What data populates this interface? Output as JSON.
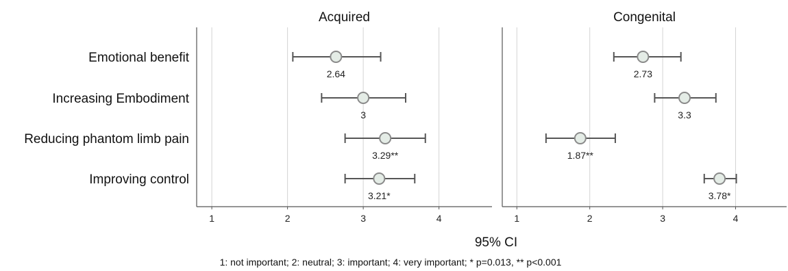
{
  "chart_data": {
    "type": "scatter",
    "xlabel": "95% CI",
    "footnote": "1: not important; 2: neutral; 3: important; 4: very important; * p=0.013, ** p<0.001",
    "xlim": [
      0.8,
      4.7
    ],
    "xticks": [
      1,
      2,
      3,
      4
    ],
    "categories": [
      "Emotional benefit",
      "Increasing Embodiment",
      "Reducing phantom limb pain",
      "Improving control"
    ],
    "colors": {
      "marker_fill": "#e4ece6",
      "marker_stroke": "#8a8a8a",
      "errorbar": "#555555",
      "grid": "#d3d3d3",
      "axis": "#555555"
    },
    "panels": [
      {
        "title": "Acquired",
        "points": [
          {
            "category": "Emotional benefit",
            "mean": 2.64,
            "ci_low": 2.07,
            "ci_high": 3.23,
            "label": "2.64"
          },
          {
            "category": "Increasing Embodiment",
            "mean": 3.0,
            "ci_low": 2.45,
            "ci_high": 3.56,
            "label": "3"
          },
          {
            "category": "Reducing phantom limb pain",
            "mean": 3.29,
            "ci_low": 2.76,
            "ci_high": 3.82,
            "label": "3.29**"
          },
          {
            "category": "Improving control",
            "mean": 3.21,
            "ci_low": 2.76,
            "ci_high": 3.68,
            "label": "3.21*"
          }
        ]
      },
      {
        "title": "Congenital",
        "points": [
          {
            "category": "Emotional benefit",
            "mean": 2.73,
            "ci_low": 2.33,
            "ci_high": 3.25,
            "label": "2.73"
          },
          {
            "category": "Increasing Embodiment",
            "mean": 3.3,
            "ci_low": 2.89,
            "ci_high": 3.73,
            "label": "3.3"
          },
          {
            "category": "Reducing phantom limb pain",
            "mean": 1.87,
            "ci_low": 1.4,
            "ci_high": 2.35,
            "label": "1.87**"
          },
          {
            "category": "Improving control",
            "mean": 3.78,
            "ci_low": 3.57,
            "ci_high": 4.01,
            "label": "3.78*"
          }
        ]
      }
    ]
  }
}
